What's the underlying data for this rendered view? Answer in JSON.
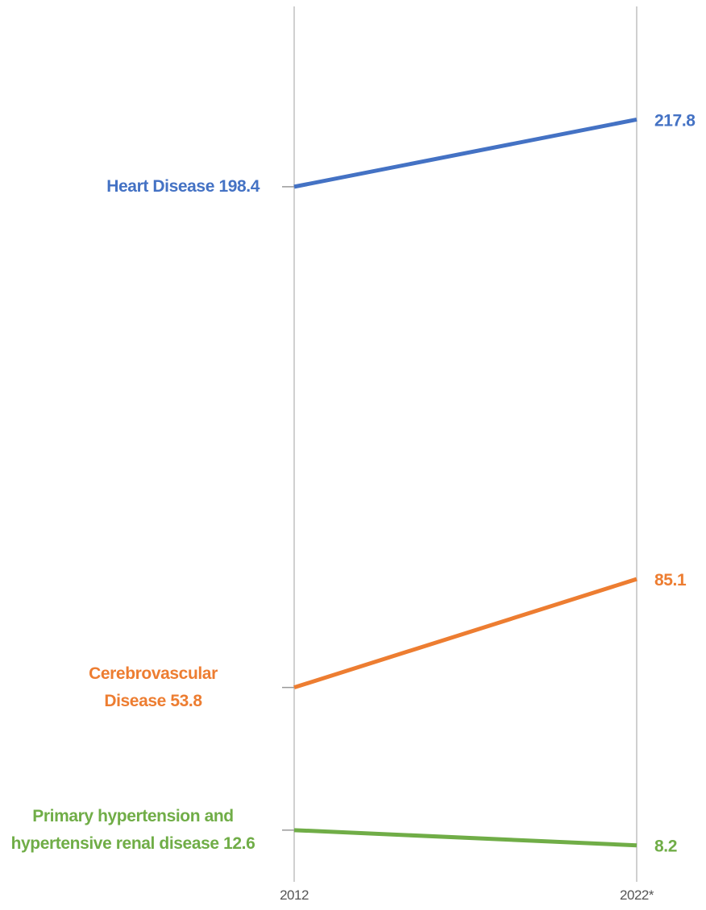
{
  "chart_data": {
    "type": "slope",
    "categories": [
      "2012",
      "2022*"
    ],
    "series": [
      {
        "name": "Heart Disease",
        "color": "#4472c4",
        "values": [
          198.4,
          217.8
        ]
      },
      {
        "name": "Cerebrovascular Disease",
        "color": "#ed7d31",
        "values": [
          53.8,
          85.1
        ]
      },
      {
        "name": "Primary hypertension and hypertensive renal disease",
        "color": "#70ad47",
        "values": [
          12.6,
          8.2
        ]
      }
    ],
    "ylim": [
      0,
      250
    ]
  }
}
